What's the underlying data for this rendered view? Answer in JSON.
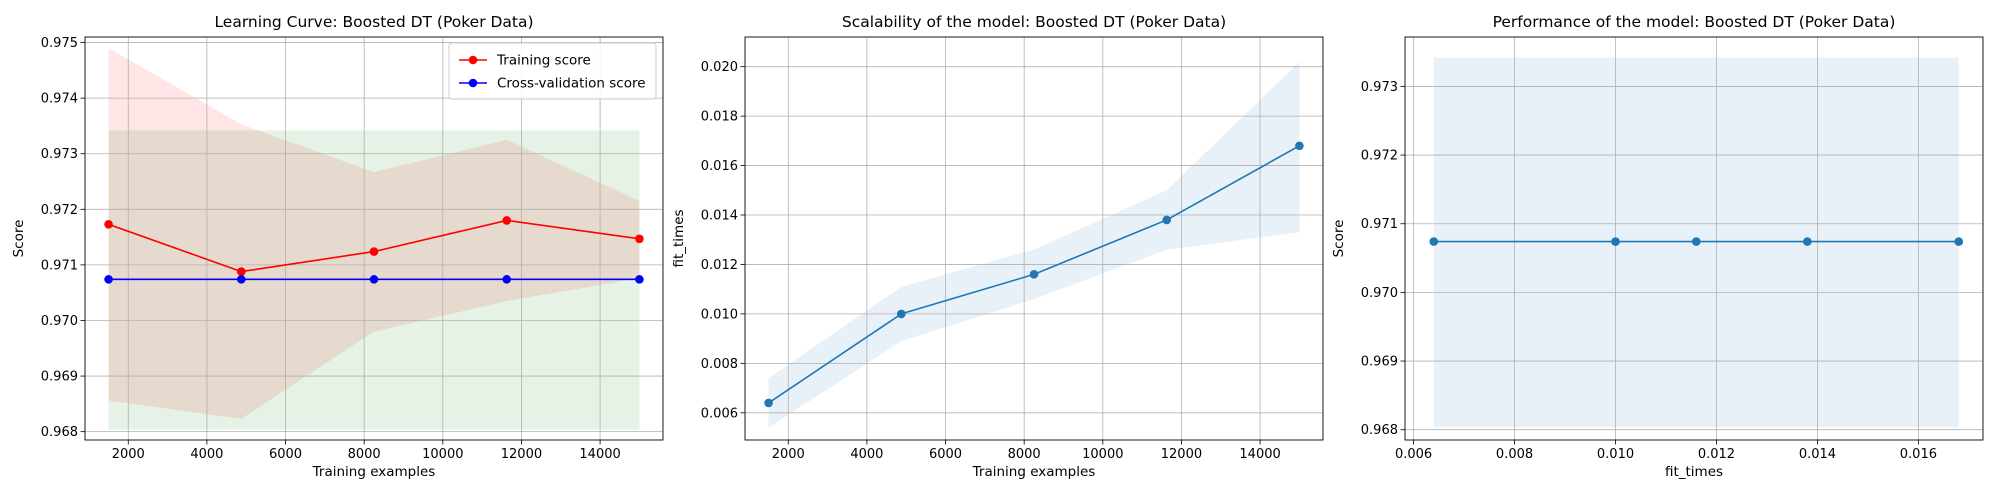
{
  "chart_data": [
    {
      "type": "line",
      "title": "Learning Curve: Boosted DT (Poker Data)",
      "xlabel": "Training examples",
      "ylabel": "Score",
      "xlim": [
        900,
        15600
      ],
      "ylim": [
        0.96785,
        0.9751
      ],
      "xticks": [
        2000,
        4000,
        6000,
        8000,
        10000,
        12000,
        14000
      ],
      "yticks": [
        0.968,
        0.969,
        0.97,
        0.971,
        0.972,
        0.973,
        0.974,
        0.975
      ],
      "xtick_decimals": 0,
      "ytick_decimals": 3,
      "grid": true,
      "legend": "top-right",
      "x": [
        1500,
        4875,
        8250,
        11625,
        15000
      ],
      "series": [
        {
          "name": "Training score",
          "color": "#ff0000",
          "values": [
            0.97173,
            0.97088,
            0.97124,
            0.9718,
            0.97147
          ],
          "band_low": [
            0.96856,
            0.96823,
            0.9698,
            0.97035,
            0.97076
          ],
          "band_high": [
            0.9749,
            0.97353,
            0.97267,
            0.97325,
            0.97215
          ],
          "band_color": "#ff0000"
        },
        {
          "name": "Cross-validation score",
          "color": "#0000ff",
          "values": [
            0.97074,
            0.97074,
            0.97074,
            0.97074,
            0.97074
          ],
          "band_low": [
            0.96804,
            0.96804,
            0.96804,
            0.96804,
            0.96804
          ],
          "band_high": [
            0.97342,
            0.97342,
            0.97342,
            0.97342,
            0.97342
          ],
          "band_color": "#008000"
        }
      ]
    },
    {
      "type": "line",
      "title": "Scalability of the model: Boosted DT (Poker Data)",
      "xlabel": "Training examples",
      "ylabel": "fit_times",
      "xlim": [
        900,
        15600
      ],
      "ylim": [
        0.0049,
        0.0212
      ],
      "xticks": [
        2000,
        4000,
        6000,
        8000,
        10000,
        12000,
        14000
      ],
      "yticks": [
        0.006,
        0.008,
        0.01,
        0.012,
        0.014,
        0.016,
        0.018,
        0.02
      ],
      "xtick_decimals": 0,
      "ytick_decimals": 3,
      "grid": true,
      "x": [
        1500,
        4875,
        8250,
        11625,
        15000
      ],
      "series": [
        {
          "color": "#1f77b4",
          "values": [
            0.0064,
            0.01,
            0.0116,
            0.0138,
            0.0168
          ],
          "band_low": [
            0.0054,
            0.0089,
            0.0106,
            0.0126,
            0.0133
          ],
          "band_high": [
            0.0074,
            0.0111,
            0.0126,
            0.015,
            0.0202
          ],
          "band_color": "#1f77b4"
        }
      ]
    },
    {
      "type": "line",
      "title": "Performance of the model: Boosted DT (Poker Data)",
      "xlabel": "fit_times",
      "ylabel": "Score",
      "xlim": [
        0.00583,
        0.01728
      ],
      "ylim": [
        0.96785,
        0.97372
      ],
      "xticks": [
        0.006,
        0.008,
        0.01,
        0.012,
        0.014,
        0.016
      ],
      "yticks": [
        0.968,
        0.969,
        0.97,
        0.971,
        0.972,
        0.973
      ],
      "xtick_decimals": 3,
      "ytick_decimals": 3,
      "grid": true,
      "x": [
        0.0064,
        0.01,
        0.0116,
        0.0138,
        0.0168
      ],
      "series": [
        {
          "color": "#1f77b4",
          "values": [
            0.97074,
            0.97074,
            0.97074,
            0.97074,
            0.97074
          ],
          "band_low": [
            0.96804,
            0.96804,
            0.96804,
            0.96804,
            0.96804
          ],
          "band_high": [
            0.97342,
            0.97342,
            0.97342,
            0.97342,
            0.97342
          ],
          "band_color": "#1f77b4"
        }
      ]
    }
  ]
}
